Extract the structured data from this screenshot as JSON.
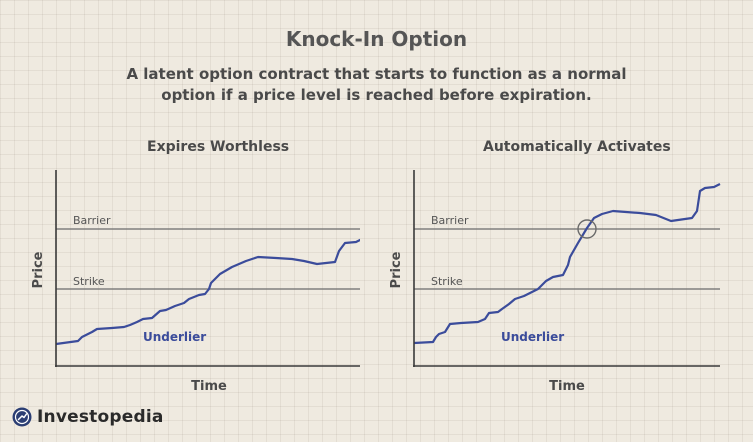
{
  "header": {
    "title": "Knock-In Option",
    "subtitle": "A latent option contract that starts to function as a normal option if a price level is reached before expiration."
  },
  "panels": [
    {
      "title": "Expires Worthless",
      "y_label": "Price",
      "x_label": "Time",
      "barrier_label": "Barrier",
      "strike_label": "Strike",
      "underlier_label": "Underlier"
    },
    {
      "title": "Automatically Activates",
      "y_label": "Price",
      "x_label": "Time",
      "barrier_label": "Barrier",
      "strike_label": "Strike",
      "underlier_label": "Underlier"
    }
  ],
  "brand": {
    "name": "Investopedia"
  },
  "colors": {
    "underlier": "#3b4c9b",
    "reference_lines": "#6b6b6b",
    "axes": "#3a3a3a",
    "background": "#efeae0"
  }
}
